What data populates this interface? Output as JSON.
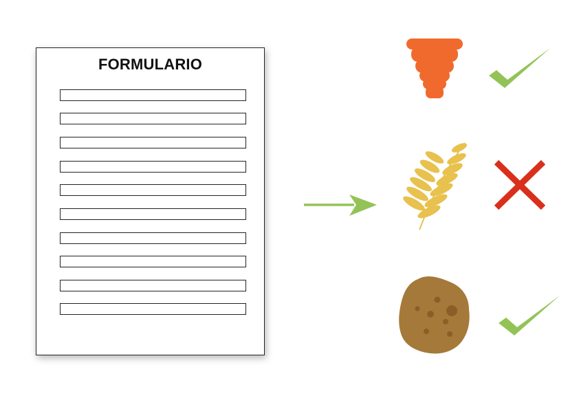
{
  "form": {
    "title": "FORMULARIO",
    "field_count": 10
  },
  "arrow": {
    "color": "#93c356"
  },
  "items": [
    {
      "icon": "honey-dipper-icon",
      "color": "#f16a2d",
      "status": "check-icon",
      "status_color": "#93c356"
    },
    {
      "icon": "wheat-icon",
      "color": "#e8c14e",
      "status": "cross-icon",
      "status_color": "#d9301c"
    },
    {
      "icon": "cookie-icon",
      "color": "#a5793a",
      "status": "check-icon",
      "status_color": "#93c356"
    }
  ]
}
